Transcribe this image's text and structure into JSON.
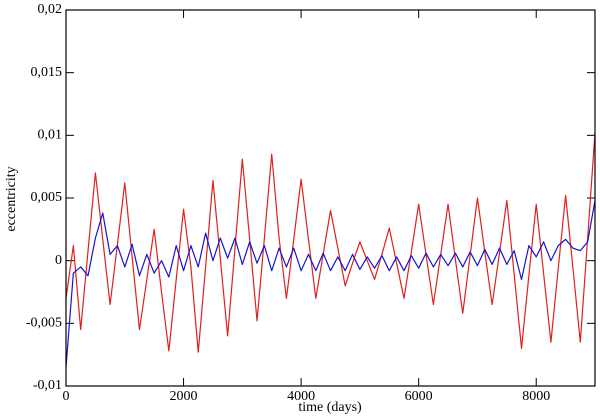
{
  "chart_data": {
    "type": "line",
    "xlabel": "time (days)",
    "ylabel": "eccentricity",
    "x": [
      0,
      125,
      250,
      375,
      500,
      625,
      750,
      875,
      1000,
      1125,
      1250,
      1375,
      1500,
      1625,
      1750,
      1875,
      2000,
      2125,
      2250,
      2375,
      2500,
      2625,
      2750,
      2875,
      3000,
      3125,
      3250,
      3375,
      3500,
      3625,
      3750,
      3875,
      4000,
      4125,
      4250,
      4375,
      4500,
      4625,
      4750,
      4875,
      5000,
      5125,
      5250,
      5375,
      5500,
      5625,
      5750,
      5875,
      6000,
      6125,
      6250,
      6375,
      6500,
      6625,
      6750,
      6875,
      7000,
      7125,
      7250,
      7375,
      7500,
      7625,
      7750,
      7875,
      8000,
      8125,
      8250,
      8375,
      8500,
      8625,
      8750,
      8875,
      9000
    ],
    "series": [
      {
        "color": "#e0201b",
        "values": [
          -0.003,
          0.0012,
          -0.0055,
          0.0008,
          0.007,
          0.0017,
          -0.0035,
          0.0013,
          0.0062,
          0.0003,
          -0.0055,
          -0.0015,
          0.0025,
          -0.0025,
          -0.0072,
          -0.0015,
          0.0041,
          -0.0005,
          -0.0073,
          -0.0005,
          0.0064,
          0.0002,
          -0.006,
          0.001,
          0.0081,
          0.0017,
          -0.0048,
          0.0018,
          0.0085,
          0.0018,
          -0.003,
          0.0017,
          0.0065,
          0.0017,
          -0.003,
          0.0005,
          0.004,
          0.001,
          -0.002,
          -0.0002,
          0.0015,
          0.0,
          -0.0015,
          0.0005,
          0.0026,
          -0.0002,
          -0.003,
          0.0007,
          0.0045,
          0.0005,
          -0.0035,
          0.0005,
          0.0045,
          0.0001,
          -0.0042,
          0.0004,
          0.005,
          0.0007,
          -0.0035,
          0.0006,
          0.0048,
          -0.0011,
          -0.007,
          -0.0012,
          0.0045,
          -0.001,
          -0.0065,
          -0.0006,
          0.0052,
          -0.0006,
          -0.0065,
          0.0018,
          0.0102
        ]
      },
      {
        "color": "#1515d0",
        "values": [
          -0.0085,
          -0.001,
          -0.0005,
          -0.0012,
          0.0018,
          0.0038,
          0.0005,
          0.0012,
          -0.0005,
          0.0013,
          -0.0012,
          0.0005,
          -0.001,
          0.0,
          -0.0013,
          0.0012,
          -0.0008,
          0.0012,
          -0.0005,
          0.0022,
          0.0,
          0.0018,
          0.0002,
          0.0018,
          -0.0003,
          0.0015,
          -0.0002,
          0.0012,
          -0.0008,
          0.001,
          -0.0005,
          0.001,
          -0.0008,
          0.0005,
          -0.0008,
          0.0006,
          -0.0008,
          0.0003,
          -0.0008,
          0.0005,
          -0.0007,
          0.0003,
          -0.0006,
          0.0004,
          -0.0008,
          0.0003,
          -0.0008,
          0.0004,
          -0.0006,
          0.0006,
          -0.0005,
          0.0005,
          -0.0004,
          0.0006,
          -0.0005,
          0.0007,
          -0.0004,
          0.0009,
          -0.0003,
          0.001,
          -0.0003,
          0.0008,
          -0.0015,
          0.0012,
          0.0003,
          0.0015,
          0.0,
          0.0012,
          0.0017,
          0.001,
          0.0008,
          0.0015,
          0.0048
        ]
      }
    ],
    "xlim": [
      0,
      9000
    ],
    "xticks": [
      0,
      2000,
      4000,
      6000,
      8000
    ],
    "ylim": [
      -0.01,
      0.02
    ],
    "yticks": [
      {
        "value": -0.01,
        "label": "-0,01"
      },
      {
        "value": -0.005,
        "label": "-0,005"
      },
      0,
      {
        "value": 0.005,
        "label": "0,005"
      },
      {
        "value": 0.01,
        "label": "0,01"
      },
      {
        "value": 0.015,
        "label": "0,015"
      },
      {
        "value": 0.02,
        "label": "0,02"
      }
    ]
  }
}
